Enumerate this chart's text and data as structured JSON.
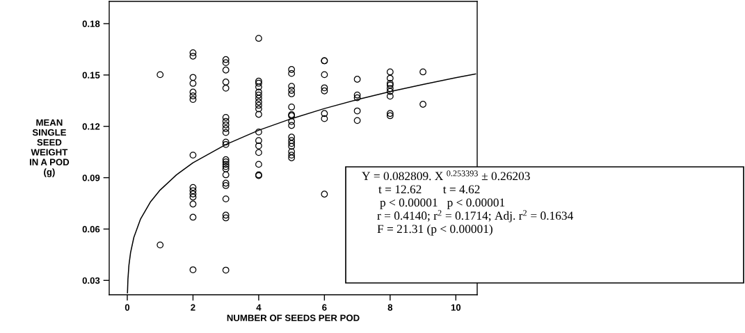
{
  "chart_data": {
    "type": "scatter",
    "xlabel": "NUMBER OF SEEDS PER POD",
    "ylabel": "MEAN\nSINGLE\nSEED\nWEIGHT\nIN A POD\n(g)",
    "series": [
      {
        "color": "#000000",
        "marker": "circle",
        "x": [
          1,
          1,
          2,
          2,
          2,
          2,
          2,
          2,
          2,
          2,
          2,
          2,
          2,
          2,
          2,
          2,
          2,
          3,
          3,
          3,
          3,
          3,
          3,
          3,
          3,
          3,
          3,
          3,
          3,
          3,
          3,
          3,
          3,
          3,
          3,
          3,
          3,
          3,
          3,
          3,
          3,
          4,
          4,
          4,
          4,
          4,
          4,
          4,
          4,
          4,
          4,
          4,
          4,
          4,
          4,
          4,
          4,
          4,
          4,
          5,
          5,
          5,
          5,
          5,
          5,
          5,
          5,
          5,
          5,
          5,
          5,
          5,
          5,
          5,
          5,
          5,
          6,
          6,
          6,
          6,
          6,
          6,
          6,
          6,
          7,
          7,
          7,
          7,
          7,
          8,
          8,
          8,
          8,
          8,
          8,
          8,
          8,
          8,
          9,
          9
        ],
        "values": [
          0.1502,
          0.0507,
          0.163,
          0.161,
          0.1486,
          0.1451,
          0.14,
          0.1378,
          0.1357,
          0.1032,
          0.0843,
          0.0824,
          0.0805,
          0.0787,
          0.0746,
          0.0669,
          0.0362,
          0.159,
          0.1572,
          0.1529,
          0.1459,
          0.1423,
          0.1252,
          0.1229,
          0.1208,
          0.1187,
          0.1164,
          0.1108,
          0.1094,
          0.1005,
          0.0992,
          0.0978,
          0.0965,
          0.0951,
          0.0917,
          0.0868,
          0.0854,
          0.0776,
          0.0681,
          0.0665,
          0.036,
          0.1714,
          0.1464,
          0.1452,
          0.143,
          0.14,
          0.1383,
          0.1364,
          0.1342,
          0.1323,
          0.1302,
          0.127,
          0.1167,
          0.1117,
          0.1086,
          0.1047,
          0.0978,
          0.0917,
          0.0912,
          0.1532,
          0.1509,
          0.1434,
          0.141,
          0.139,
          0.1313,
          0.1268,
          0.1262,
          0.1228,
          0.1205,
          0.1137,
          0.1117,
          0.11,
          0.1083,
          0.1052,
          0.1032,
          0.1016,
          0.1583,
          0.1583,
          0.1502,
          0.1425,
          0.1407,
          0.1275,
          0.1245,
          0.0804,
          0.1475,
          0.1383,
          0.1367,
          0.129,
          0.1234,
          0.1518,
          0.1481,
          0.1451,
          0.1441,
          0.1421,
          0.1404,
          0.1376,
          0.1275,
          0.1262,
          0.1518,
          0.1329
        ]
      },
      {
        "type": "line",
        "color": "#000000",
        "marker": "none",
        "line_style": "solid",
        "x": [
          0.006,
          0.02,
          0.05,
          0.1,
          0.2,
          0.4,
          0.7,
          1,
          1.5,
          2,
          3,
          4,
          5,
          6,
          7,
          8,
          9,
          10,
          10.6
        ],
        "values": [
          0.0227,
          0.0307,
          0.0388,
          0.0462,
          0.0551,
          0.0657,
          0.0757,
          0.0828,
          0.0917,
          0.0987,
          0.1094,
          0.1177,
          0.1245,
          0.1304,
          0.1356,
          0.1403,
          0.1445,
          0.1484,
          0.1506
        ]
      }
    ],
    "xlim": [
      -0.55,
      10.65
    ],
    "xticks": [
      0,
      2,
      4,
      6,
      8,
      10
    ],
    "ylim": [
      0.0216,
      0.193
    ],
    "yticks": [
      0.03,
      0.06,
      0.09,
      0.12,
      0.15,
      0.18
    ],
    "grid": false,
    "legend": false,
    "annotations": [
      "Y = 0.082809. X $^{0.253393}$ ± 0.26203",
      "t = 12.62       t = 4.62",
      "p < 0.00001   p < 0.00001",
      "r = 0.4140; r$^{2}$ = 0.1714; Adj. r$^{2}$ = 0.1634",
      "F = 21.31 (p < 0.00001)"
    ]
  }
}
